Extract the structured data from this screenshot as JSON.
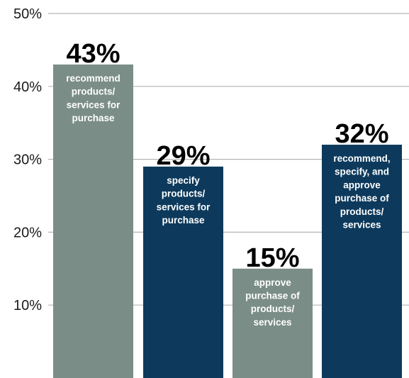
{
  "chart_data": {
    "type": "bar",
    "ylim": [
      0,
      50
    ],
    "y_ticks": [
      "10%",
      "20%",
      "30%",
      "40%",
      "50%"
    ],
    "grid": true,
    "bars": [
      {
        "value": 43,
        "value_label": "43%",
        "desc": [
          "recommend",
          "products/",
          "services for",
          "purchase"
        ],
        "color": "#7b8d87"
      },
      {
        "value": 29,
        "value_label": "29%",
        "desc": [
          "specify",
          "products/",
          "services for",
          "purchase"
        ],
        "color": "#0d3a5c"
      },
      {
        "value": 15,
        "value_label": "15%",
        "desc": [
          "approve",
          "purchase of",
          "products/",
          "services"
        ],
        "color": "#7b8d87"
      },
      {
        "value": 32,
        "value_label": "32%",
        "desc": [
          "recommend,",
          "specify, and",
          "approve",
          "purchase of",
          "products/",
          "services"
        ],
        "color": "#0d3a5c"
      }
    ],
    "colors": {
      "grid": "#b5b5b5",
      "tick_text": "#1a1a1a",
      "value_text": "#000000",
      "desc_text": "#ffffff"
    }
  }
}
